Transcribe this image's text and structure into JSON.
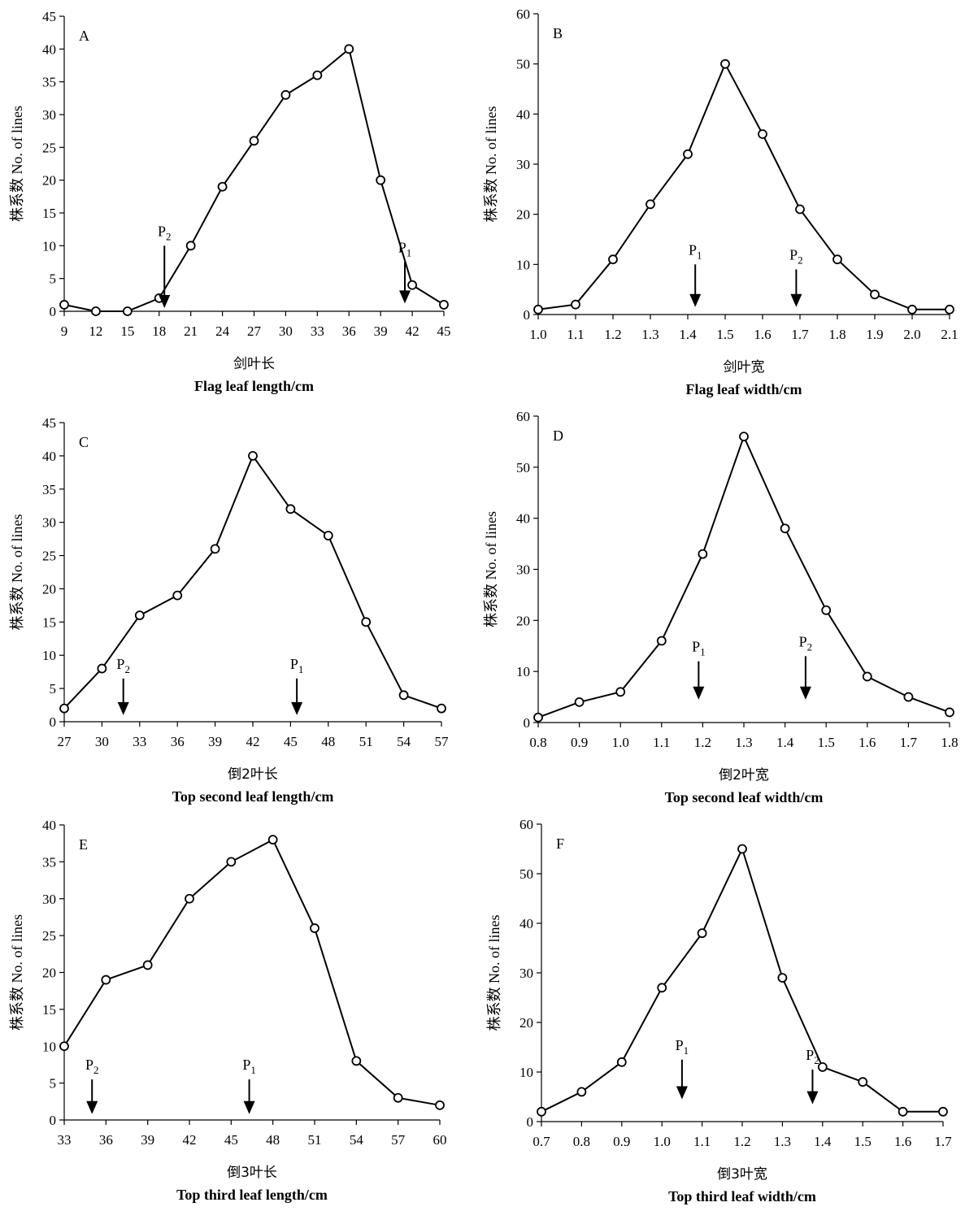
{
  "chart_data": [
    {
      "id": "A",
      "type": "line",
      "panel_label": "A",
      "ylabel": "株系数 No. of lines",
      "xlabel_cn": "剑叶长",
      "xlabel_en": "Flag leaf length/cm",
      "xlim": [
        9,
        45
      ],
      "ylim": [
        0,
        45
      ],
      "xticks": [
        "9",
        "12",
        "15",
        "18",
        "21",
        "24",
        "27",
        "30",
        "33",
        "36",
        "39",
        "42",
        "45"
      ],
      "yticks": [
        "0",
        "5",
        "10",
        "15",
        "20",
        "25",
        "30",
        "35",
        "40",
        "45"
      ],
      "x": [
        9,
        12,
        15,
        18,
        21,
        24,
        27,
        30,
        33,
        36,
        39,
        42,
        45
      ],
      "y": [
        1,
        0,
        0,
        2,
        10,
        19,
        26,
        33,
        36,
        40,
        20,
        4,
        1
      ],
      "markers": [
        {
          "label": "P",
          "sub": "2",
          "x": 18.5,
          "top": 10,
          "bottom": 0.5
        },
        {
          "label": "P",
          "sub": "1",
          "x": 41.3,
          "top": 7.5,
          "bottom": 1.2
        }
      ]
    },
    {
      "id": "B",
      "type": "line",
      "panel_label": "B",
      "ylabel": "株系数 No. of lines",
      "xlabel_cn": "剑叶宽",
      "xlabel_en": "Flag leaf width/cm",
      "xlim": [
        1.0,
        2.1
      ],
      "ylim": [
        0,
        60
      ],
      "xticks": [
        "1.0",
        "1.1",
        "1.2",
        "1.3",
        "1.4",
        "1.5",
        "1.6",
        "1.7",
        "1.8",
        "1.9",
        "2.0",
        "2.1"
      ],
      "yticks": [
        "0",
        "10",
        "20",
        "30",
        "40",
        "50",
        "60"
      ],
      "x": [
        1.0,
        1.1,
        1.2,
        1.3,
        1.4,
        1.5,
        1.6,
        1.7,
        1.8,
        1.9,
        2.0,
        2.1
      ],
      "y": [
        1,
        2,
        11,
        22,
        32,
        50,
        36,
        21,
        11,
        4,
        1,
        1
      ],
      "markers": [
        {
          "label": "P",
          "sub": "1",
          "x": 1.42,
          "top": 10,
          "bottom": 1.5
        },
        {
          "label": "P",
          "sub": "2",
          "x": 1.69,
          "top": 9,
          "bottom": 1.5
        }
      ]
    },
    {
      "id": "C",
      "type": "line",
      "panel_label": "C",
      "ylabel": "株系数 No. of lines",
      "xlabel_cn": "倒2叶长",
      "xlabel_en": "Top second leaf length/cm",
      "xlim": [
        27,
        57
      ],
      "ylim": [
        0,
        45
      ],
      "xticks": [
        "27",
        "30",
        "33",
        "36",
        "39",
        "42",
        "45",
        "48",
        "51",
        "54",
        "57"
      ],
      "yticks": [
        "0",
        "5",
        "10",
        "15",
        "20",
        "25",
        "30",
        "35",
        "40",
        "45"
      ],
      "x": [
        27,
        30,
        33,
        36,
        39,
        42,
        45,
        48,
        51,
        54,
        57
      ],
      "y": [
        2,
        8,
        16,
        19,
        26,
        40,
        32,
        28,
        15,
        4,
        2
      ],
      "markers": [
        {
          "label": "P",
          "sub": "2",
          "x": 31.7,
          "top": 6.5,
          "bottom": 1
        },
        {
          "label": "P",
          "sub": "1",
          "x": 45.5,
          "top": 6.5,
          "bottom": 1
        }
      ]
    },
    {
      "id": "D",
      "type": "line",
      "panel_label": "D",
      "ylabel": "株系数 No. of lines",
      "xlabel_cn": "倒2叶宽",
      "xlabel_en": "Top second leaf width/cm",
      "xlim": [
        0.8,
        1.8
      ],
      "ylim": [
        0,
        60
      ],
      "xticks": [
        "0.8",
        "0.9",
        "1.0",
        "1.1",
        "1.2",
        "1.3",
        "1.4",
        "1.5",
        "1.6",
        "1.7",
        "1.8"
      ],
      "yticks": [
        "0",
        "10",
        "20",
        "30",
        "40",
        "50",
        "60"
      ],
      "x": [
        0.8,
        0.9,
        1.0,
        1.1,
        1.2,
        1.3,
        1.4,
        1.5,
        1.6,
        1.7,
        1.8
      ],
      "y": [
        1,
        4,
        6,
        16,
        33,
        56,
        38,
        22,
        9,
        5,
        2
      ],
      "markers": [
        {
          "label": "P",
          "sub": "1",
          "x": 1.19,
          "top": 12,
          "bottom": 4.5
        },
        {
          "label": "P",
          "sub": "2",
          "x": 1.45,
          "top": 13,
          "bottom": 4.5
        }
      ]
    },
    {
      "id": "E",
      "type": "line",
      "panel_label": "E",
      "ylabel": "株系数 No. of lines",
      "xlabel_cn": "倒3叶长",
      "xlabel_en": "Top third leaf length/cm",
      "xlim": [
        33,
        60
      ],
      "ylim": [
        0,
        40
      ],
      "xticks": [
        "33",
        "36",
        "39",
        "42",
        "45",
        "48",
        "51",
        "54",
        "57",
        "60"
      ],
      "yticks": [
        "0",
        "5",
        "10",
        "15",
        "20",
        "25",
        "30",
        "35",
        "40"
      ],
      "x": [
        33,
        36,
        39,
        42,
        45,
        48,
        51,
        54,
        57,
        60
      ],
      "y": [
        10,
        19,
        21,
        30,
        35,
        38,
        26,
        8,
        3,
        2
      ],
      "markers": [
        {
          "label": "P",
          "sub": "2",
          "x": 35,
          "top": 5.5,
          "bottom": 0.8
        },
        {
          "label": "P",
          "sub": "1",
          "x": 46.3,
          "top": 5.5,
          "bottom": 0.8
        }
      ]
    },
    {
      "id": "F",
      "type": "line",
      "panel_label": "F",
      "ylabel": "株系数 No. of lines",
      "xlabel_cn": "倒3叶宽",
      "xlabel_en": "Top third leaf width/cm",
      "xlim": [
        0.7,
        1.7
      ],
      "ylim": [
        0,
        60
      ],
      "xticks": [
        "0.7",
        "0.8",
        "0.9",
        "1.0",
        "1.1",
        "1.2",
        "1.3",
        "1.4",
        "1.5",
        "1.6",
        "1.7"
      ],
      "yticks": [
        "0",
        "10",
        "20",
        "30",
        "40",
        "50",
        "60"
      ],
      "x": [
        0.7,
        0.8,
        0.9,
        1.0,
        1.1,
        1.2,
        1.3,
        1.4,
        1.5,
        1.6,
        1.7
      ],
      "y": [
        2,
        6,
        12,
        27,
        38,
        55,
        29,
        11,
        8,
        2,
        2
      ],
      "markers": [
        {
          "label": "P",
          "sub": "1",
          "x": 1.05,
          "top": 12.5,
          "bottom": 4.5
        },
        {
          "label": "P",
          "sub": "2",
          "x": 1.375,
          "top": 10.5,
          "bottom": 3.5
        }
      ]
    }
  ]
}
